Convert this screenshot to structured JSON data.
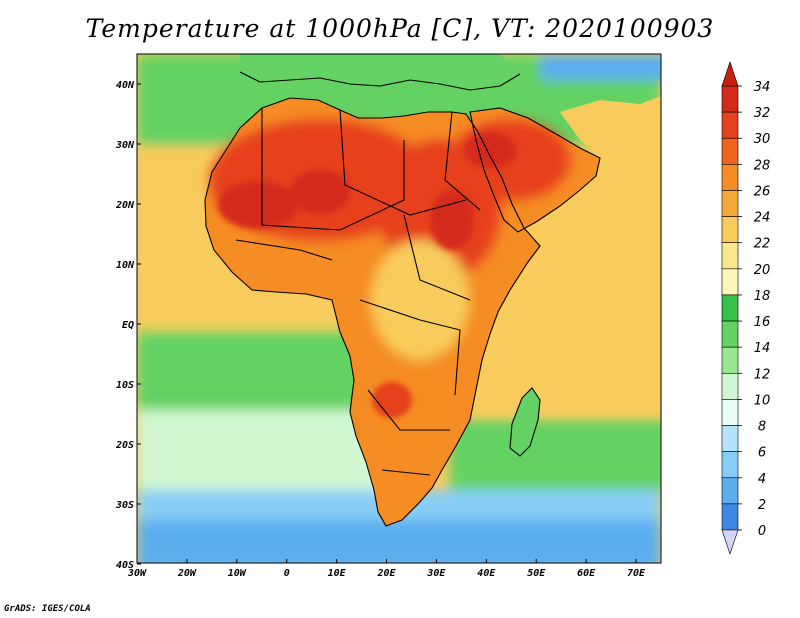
{
  "title": "Temperature at 1000hPa [C], VT: 2020100903",
  "credit": "GrADS: IGES/COLA",
  "axes": {
    "x_ticks": [
      "30W",
      "20W",
      "10W",
      "0",
      "10E",
      "20E",
      "30E",
      "40E",
      "50E",
      "60E",
      "70E"
    ],
    "y_ticks": [
      "40N",
      "30N",
      "20N",
      "10N",
      "EQ",
      "10S",
      "20S",
      "30S",
      "40S"
    ]
  },
  "colorbar": {
    "labels": [
      "34",
      "32",
      "30",
      "28",
      "26",
      "24",
      "22",
      "20",
      "18",
      "16",
      "14",
      "12",
      "10",
      "8",
      "6",
      "4",
      "2",
      "0"
    ],
    "colors": [
      "#d42a1a",
      "#e6411e",
      "#f0641e",
      "#f58c24",
      "#f6aa3c",
      "#f8cc5c",
      "#fbe88a",
      "#fcf6bc",
      "#36c24a",
      "#64d264",
      "#9ae692",
      "#d2f8d2",
      "#e8fcf8",
      "#b4e4fa",
      "#88cdf6",
      "#5aaeee",
      "#3c88e2",
      "#1e5ed2",
      "#1432a0",
      "#14146e"
    ],
    "upper_cap_color": "#c81e12",
    "lower_cap_color": "#d4d4f8"
  },
  "palette": {
    "ocean_cold": "#5aaeee",
    "ocean_cool": "#88cdf6",
    "ocean_mild": "#d2f8d2",
    "ocean_green": "#64d264",
    "ocean_warm": "#fbe88a",
    "ocean_tropical": "#f8cc5c",
    "land_hot": "#f58c24",
    "land_very_hot": "#e6411e",
    "land_extreme": "#d42a1a",
    "coast_line": "#000000"
  }
}
